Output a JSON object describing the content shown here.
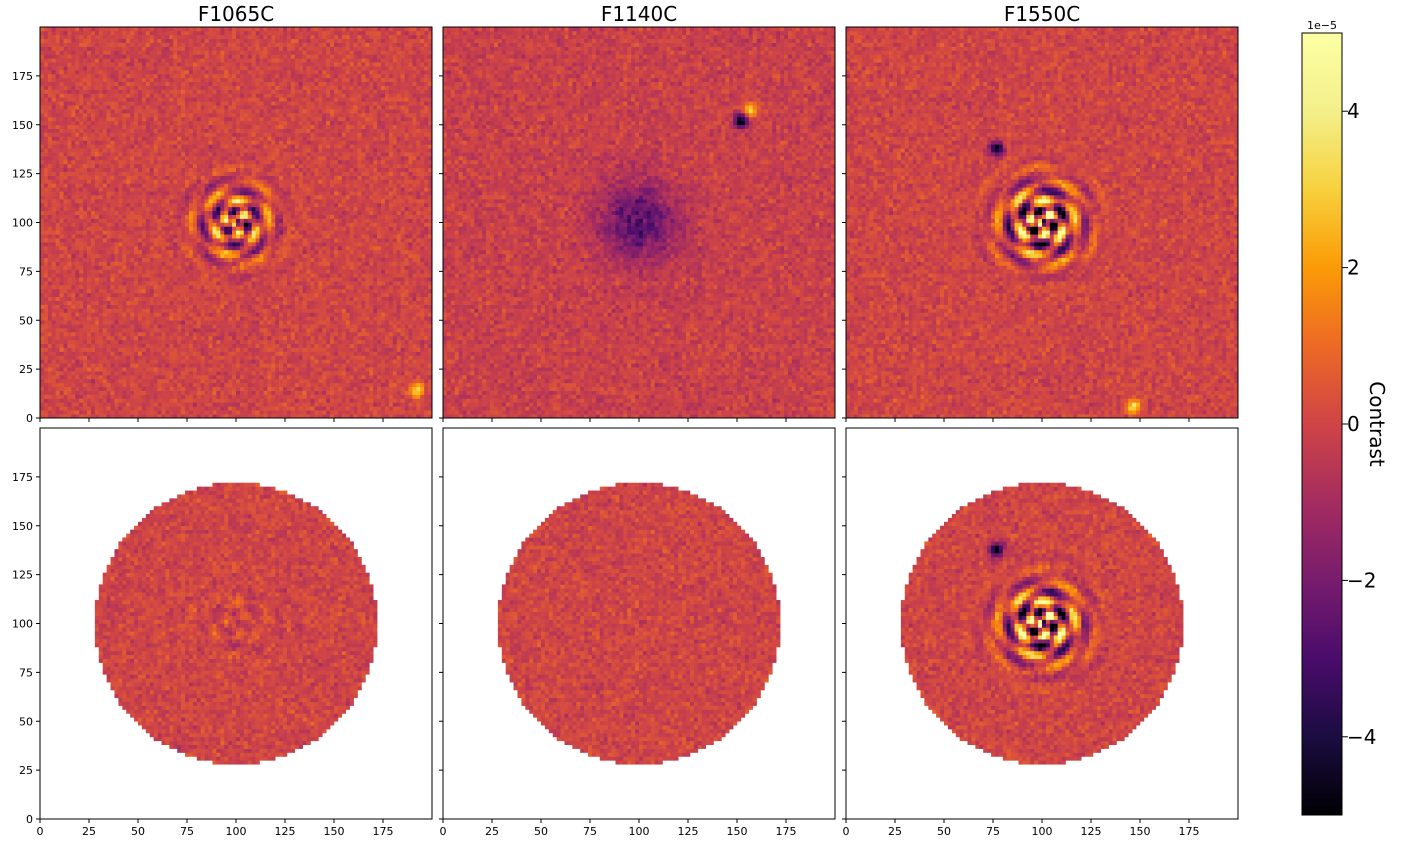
{
  "figure": {
    "panel_titles": [
      "F1065C",
      "F1140C",
      "F1550C"
    ],
    "rows": [
      "full",
      "masked"
    ],
    "colorbar": {
      "label": "Contrast",
      "exponent_label": "1e−5",
      "range": [
        -5,
        5
      ],
      "ticks": [
        -4,
        -2,
        0,
        2,
        4
      ],
      "tick_labels": [
        "−4",
        "−2",
        "0",
        "2",
        "4"
      ],
      "colormap": "inferno"
    }
  },
  "chart_data": {
    "type": "heatmap",
    "layout": "2x3 image grid",
    "x_ticks": [
      0,
      25,
      50,
      75,
      100,
      125,
      150,
      175
    ],
    "y_ticks": [
      0,
      25,
      50,
      75,
      100,
      125,
      150,
      175
    ],
    "xlim": [
      0,
      200
    ],
    "ylim": [
      0,
      200
    ],
    "color_range": [
      -5e-05,
      5e-05
    ],
    "colormap": "inferno",
    "colorbar_label": "Contrast",
    "panels": [
      {
        "row": 0,
        "col": 0,
        "title": "F1065C",
        "mask": "none",
        "center": [
          100,
          100
        ],
        "residual_strength": "medium",
        "sources": [
          [
            192,
            14,
            "bright"
          ]
        ]
      },
      {
        "row": 0,
        "col": 1,
        "title": "F1140C",
        "mask": "none",
        "center": [
          100,
          100
        ],
        "residual_strength": "dark",
        "sources": [
          [
            157,
            158,
            "bright"
          ],
          [
            152,
            152,
            "dark"
          ]
        ]
      },
      {
        "row": 0,
        "col": 2,
        "title": "F1550C",
        "mask": "none",
        "center": [
          100,
          100
        ],
        "residual_strength": "strong",
        "sources": [
          [
            77,
            138,
            "dark"
          ],
          [
            147,
            6,
            "bright"
          ]
        ]
      },
      {
        "row": 1,
        "col": 0,
        "title": "",
        "mask": "circle",
        "mask_center": [
          100,
          100
        ],
        "mask_radius": 72,
        "residual_strength": "weak",
        "sources": []
      },
      {
        "row": 1,
        "col": 1,
        "title": "",
        "mask": "circle",
        "mask_center": [
          100,
          100
        ],
        "mask_radius": 72,
        "residual_strength": "weak-dark",
        "sources": []
      },
      {
        "row": 1,
        "col": 2,
        "title": "",
        "mask": "circle",
        "mask_center": [
          100,
          100
        ],
        "mask_radius": 72,
        "residual_strength": "strong",
        "sources": [
          [
            77,
            138,
            "dark"
          ]
        ]
      }
    ]
  }
}
